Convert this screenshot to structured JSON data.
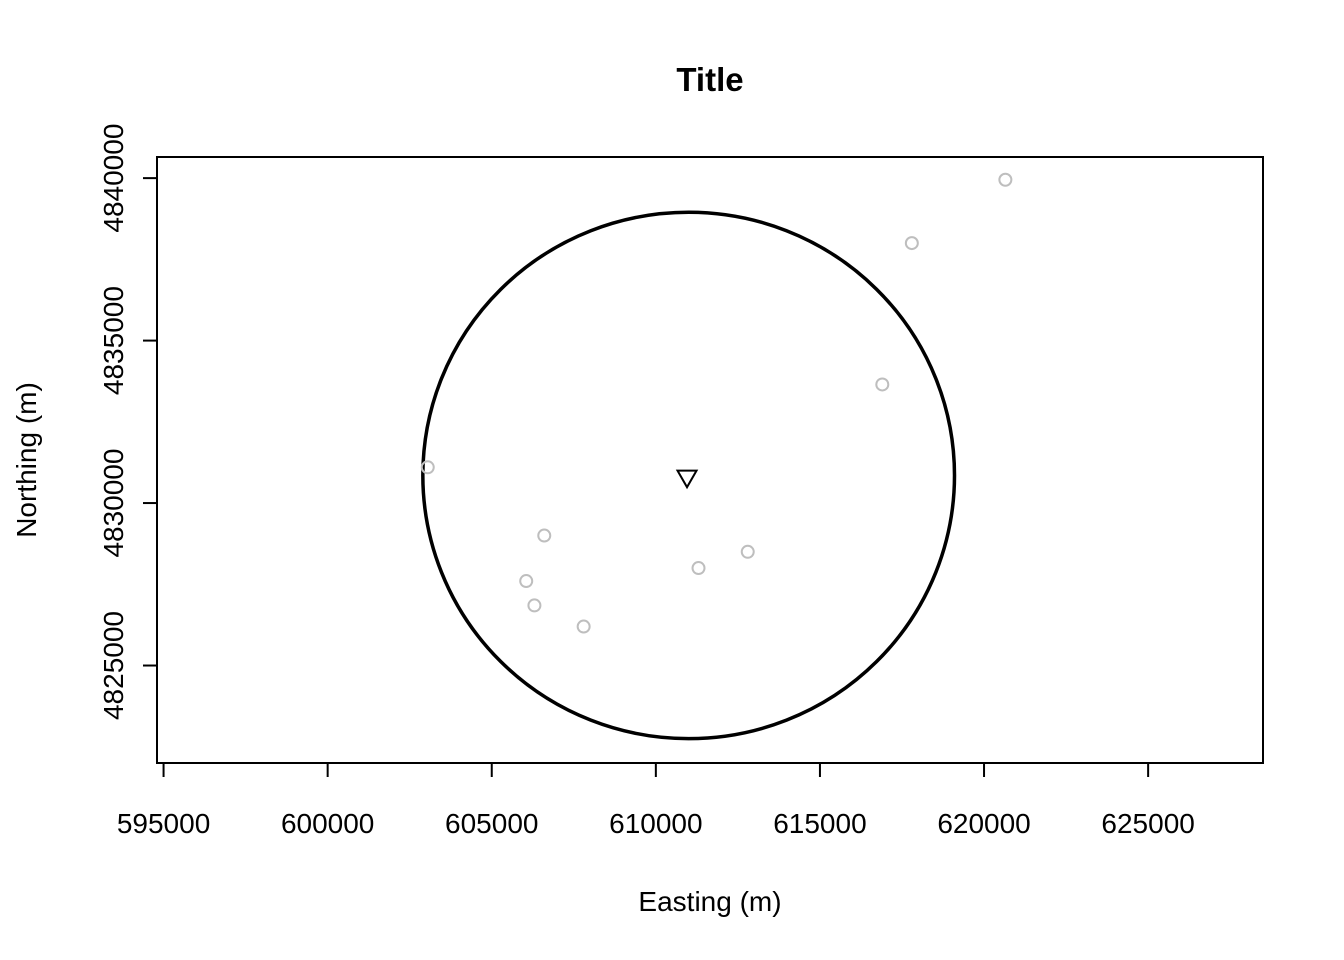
{
  "chart_data": {
    "type": "scatter",
    "title": "Title",
    "xlabel": "Easting (m)",
    "ylabel": "Northing (m)",
    "xlim": [
      594800,
      628500
    ],
    "ylim": [
      4822000,
      4840650
    ],
    "xticks": [
      595000,
      600000,
      605000,
      610000,
      615000,
      620000,
      625000
    ],
    "xtick_labels": [
      "595000",
      "600000",
      "605000",
      "610000",
      "615000",
      "620000",
      "625000"
    ],
    "yticks": [
      4825000,
      4830000,
      4835000,
      4840000
    ],
    "ytick_labels": [
      "4825000",
      "4830000",
      "4835000",
      "4840000"
    ],
    "grid": false,
    "points": [
      {
        "x": 603050,
        "y": 4831100
      },
      {
        "x": 606600,
        "y": 4829000
      },
      {
        "x": 606050,
        "y": 4827600
      },
      {
        "x": 606300,
        "y": 4826850
      },
      {
        "x": 607800,
        "y": 4826200
      },
      {
        "x": 611300,
        "y": 4828000
      },
      {
        "x": 612800,
        "y": 4828500
      },
      {
        "x": 616900,
        "y": 4833650
      },
      {
        "x": 617800,
        "y": 4838000
      },
      {
        "x": 620650,
        "y": 4839950
      }
    ],
    "point_color": "#bebebe",
    "center": {
      "x": 610950,
      "y": 4830750
    },
    "circle": {
      "cx": 611000,
      "cy": 4830850,
      "radius": 8100
    },
    "circle_color": "#000000"
  }
}
